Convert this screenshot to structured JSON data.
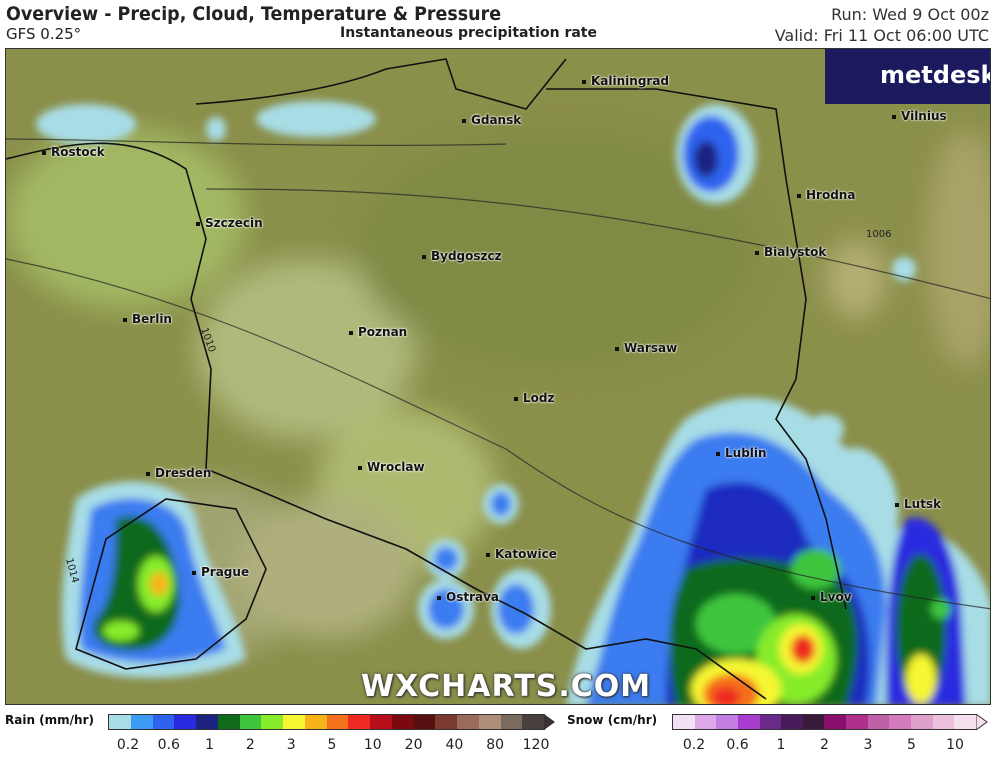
{
  "header": {
    "title": "Overview - Precip, Cloud, Temperature & Pressure",
    "model": "GFS 0.25°",
    "subtitle": "Instantaneous precipitation rate",
    "run": "Run: Wed 9 Oct 00z",
    "valid": "Valid: Fri 11 Oct 06:00 UTC"
  },
  "logo": "metdesk",
  "watermark": "WXCHARTS.COM",
  "cities": [
    "Kaliningrad",
    "Vilnius",
    "Gdansk",
    "Rostock",
    "Hrodna",
    "Szczecin",
    "Bydgoszcz",
    "Bialystok",
    "Berlin",
    "Poznan",
    "Warsaw",
    "Lodz",
    "Lublin",
    "Dresden",
    "Wroclaw",
    "Lutsk",
    "Katowice",
    "Prague",
    "Ostrava",
    "Lvov"
  ],
  "isobars": [
    "1006",
    "1010",
    "1014"
  ],
  "legend": {
    "rain": {
      "label": "Rain (mm/hr)",
      "ticks": [
        "0.2",
        "0.6",
        "1",
        "2",
        "3",
        "5",
        "10",
        "20",
        "40",
        "80",
        "120"
      ],
      "colors": [
        "#a8dde6",
        "#3a9cf5",
        "#2f63ef",
        "#2a2be0",
        "#1c2380",
        "#0f6b1a",
        "#3dc63d",
        "#86ec2a",
        "#f6f632",
        "#f8b21a",
        "#f5701a",
        "#ee2a22",
        "#b8101a",
        "#7a0a10",
        "#561010",
        "#7a3a30",
        "#9a6a5a",
        "#b08f7a",
        "#7a6a60",
        "#4a4040"
      ]
    },
    "snow": {
      "label": "Snow (cm/hr)",
      "ticks": [
        "0.2",
        "0.6",
        "1",
        "2",
        "3",
        "5",
        "10"
      ],
      "colors": [
        "#f3e0f2",
        "#dea8ea",
        "#c27ee0",
        "#a83ccf",
        "#6a2a8a",
        "#4a1a5a",
        "#3a1a3a",
        "#8a1070",
        "#b0308e",
        "#c060a8",
        "#d47abc",
        "#e0a0cc",
        "#ecc0dc",
        "#f5e0ee"
      ]
    }
  }
}
